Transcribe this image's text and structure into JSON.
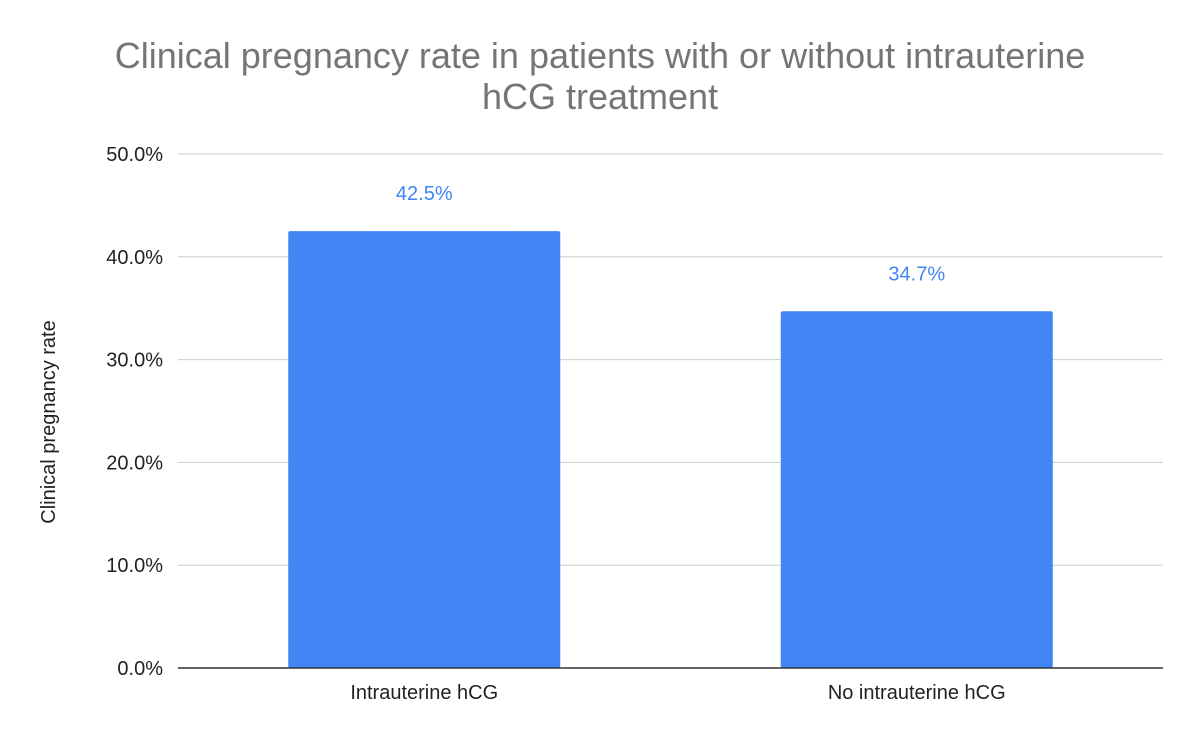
{
  "chart_data": {
    "type": "bar",
    "title_lines": [
      "Clinical pregnancy rate in patients with or without intrauterine",
      "hCG treatment"
    ],
    "xlabel": "",
    "ylabel": "Clinical pregnancy rate",
    "categories": [
      "Intrauterine hCG",
      "No intrauterine hCG"
    ],
    "values": [
      42.5,
      34.7
    ],
    "data_labels": [
      "42.5%",
      "34.7%"
    ],
    "ylim": [
      0,
      50
    ],
    "yticks": [
      0,
      10,
      20,
      30,
      40,
      50
    ],
    "ytick_labels": [
      "0.0%",
      "10.0%",
      "20.0%",
      "30.0%",
      "40.0%",
      "50.0%"
    ],
    "bar_color": "#4285F4",
    "label_color": "#4285F4",
    "grid": true,
    "legend": "none"
  }
}
